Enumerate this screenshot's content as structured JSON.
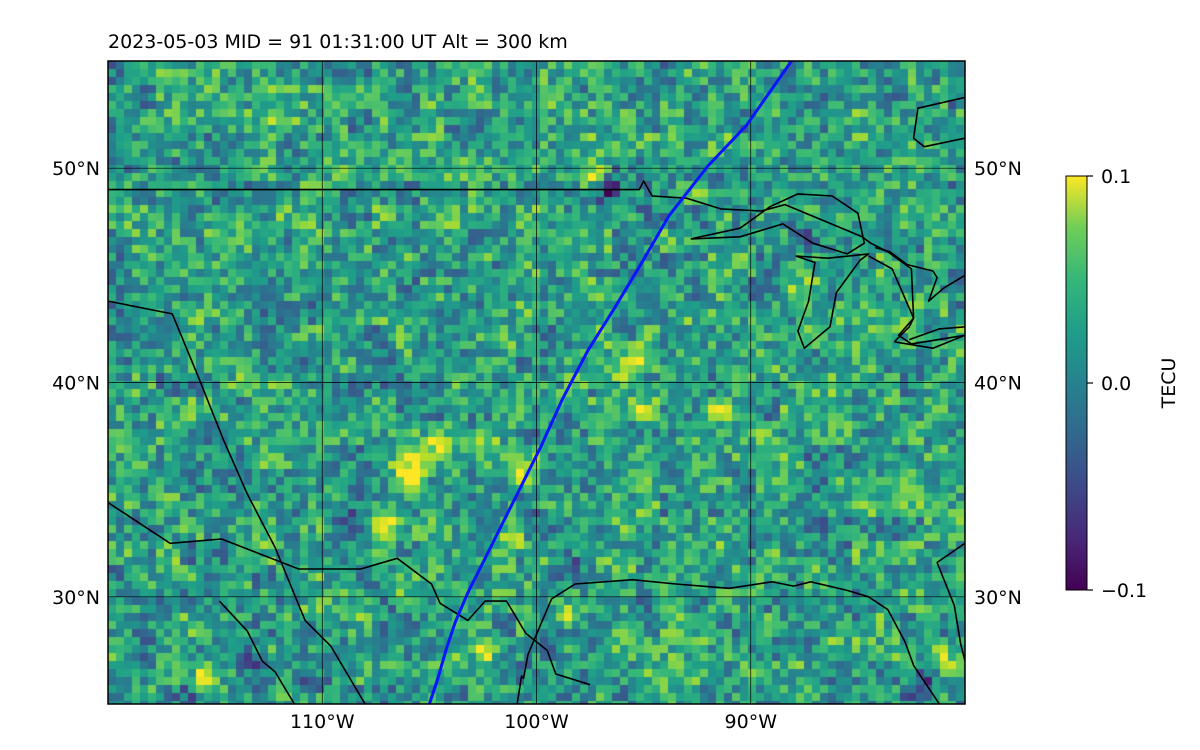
{
  "title": "2023-05-03  MID =  91    01:31:00  UT  Alt = 300 km",
  "colorbar": {
    "label": "TECU",
    "ticks": [
      {
        "value": 0.1,
        "label": "0.1"
      },
      {
        "value": 0.0,
        "label": "0.0"
      },
      {
        "value": -0.1,
        "label": "−0.1"
      }
    ],
    "vmin": -0.1,
    "vmax": 0.1,
    "colormap": "viridis"
  },
  "chart_data": {
    "type": "heatmap",
    "projection": "PlateCarree",
    "xlim": [
      -120,
      -80
    ],
    "ylim": [
      25,
      55
    ],
    "x_ticks": [
      {
        "value": -110,
        "label": "110°W"
      },
      {
        "value": -100,
        "label": "100°W"
      },
      {
        "value": -90,
        "label": "90°W"
      }
    ],
    "y_ticks": [
      {
        "value": 50,
        "label": "50°N"
      },
      {
        "value": 40,
        "label": "40°N"
      },
      {
        "value": 30,
        "label": "30°N"
      }
    ],
    "grid": true,
    "track_color": "#0a14ff",
    "track": [
      [
        -105.0,
        25.0
      ],
      [
        -104.6,
        26.2
      ],
      [
        -104.2,
        27.6
      ],
      [
        -103.8,
        28.8
      ],
      [
        -103.2,
        30.2
      ],
      [
        -102.4,
        31.8
      ],
      [
        -101.6,
        33.4
      ],
      [
        -100.8,
        35.0
      ],
      [
        -99.8,
        37.0
      ],
      [
        -98.8,
        39.2
      ],
      [
        -97.6,
        41.5
      ],
      [
        -96.4,
        43.4
      ],
      [
        -95.2,
        45.4
      ],
      [
        -93.8,
        47.8
      ],
      [
        -92.0,
        50.1
      ],
      [
        -90.2,
        52.0
      ],
      [
        -88.1,
        55.0
      ]
    ],
    "hotspots": [
      {
        "lon": -115.5,
        "lat": 26.2,
        "amp": 0.09
      },
      {
        "lon": -102.6,
        "lat": 37.2,
        "amp": 0.09
      },
      {
        "lon": -100.8,
        "lat": 35.7,
        "amp": 0.09
      },
      {
        "lon": -104.6,
        "lat": 36.9,
        "amp": 0.08
      },
      {
        "lon": -105.6,
        "lat": 36.1,
        "amp": 0.08
      },
      {
        "lon": -106.0,
        "lat": 35.6,
        "amp": 0.08
      },
      {
        "lon": -107.0,
        "lat": 33.6,
        "amp": 0.09
      },
      {
        "lon": -95.8,
        "lat": 40.7,
        "amp": 0.09
      },
      {
        "lon": -95.2,
        "lat": 41.2,
        "amp": 0.07
      },
      {
        "lon": -97.5,
        "lat": 49.6,
        "amp": 0.08
      },
      {
        "lon": -99.8,
        "lat": 53.0,
        "amp": 0.05
      },
      {
        "lon": -112.0,
        "lat": 52.2,
        "amp": 0.05
      },
      {
        "lon": -95.0,
        "lat": 38.5,
        "amp": 0.06
      },
      {
        "lon": -91.4,
        "lat": 38.8,
        "amp": 0.06
      },
      {
        "lon": -88.2,
        "lat": 44.5,
        "amp": 0.05
      },
      {
        "lon": -101.0,
        "lat": 32.5,
        "amp": 0.06
      },
      {
        "lon": -102.5,
        "lat": 27.5,
        "amp": 0.07
      },
      {
        "lon": -98.5,
        "lat": 29.3,
        "amp": 0.06
      },
      {
        "lon": -81.0,
        "lat": 27.2,
        "amp": 0.08
      },
      {
        "lon": -106.5,
        "lat": 30.5,
        "amp": 0.04
      }
    ],
    "coldspots": [
      {
        "lon": -113.5,
        "lat": 27.3,
        "amp": -0.09
      },
      {
        "lon": -116.2,
        "lat": 25.4,
        "amp": -0.07
      },
      {
        "lon": -96.5,
        "lat": 49.0,
        "amp": -0.08
      },
      {
        "lon": -99.9,
        "lat": 33.2,
        "amp": -0.07
      },
      {
        "lon": -98.5,
        "lat": 31.6,
        "amp": -0.06
      },
      {
        "lon": -108.8,
        "lat": 33.4,
        "amp": -0.06
      },
      {
        "lon": -87.8,
        "lat": 46.6,
        "amp": -0.06
      },
      {
        "lon": -82.0,
        "lat": 25.8,
        "amp": -0.09
      },
      {
        "lon": -110.5,
        "lat": 26.0,
        "amp": -0.06
      },
      {
        "lon": -86.0,
        "lat": 25.5,
        "amp": -0.05
      },
      {
        "lon": -100.5,
        "lat": 41.0,
        "amp": -0.04
      }
    ]
  },
  "map_features": {
    "coastlines": [
      [
        [
          -120,
          43.8
        ],
        [
          -117.0,
          43.2
        ],
        [
          -115.8,
          40.3
        ],
        [
          -114.6,
          37.3
        ],
        [
          -113.5,
          34.8
        ],
        [
          -112.2,
          32.3
        ],
        [
          -110.8,
          28.9
        ],
        [
          -109.6,
          27.7
        ],
        [
          -108.0,
          25.0
        ]
      ],
      [
        [
          -114.8,
          29.8
        ],
        [
          -113.5,
          28.4
        ],
        [
          -112.8,
          27.0
        ],
        [
          -112.2,
          26.5
        ],
        [
          -111.3,
          25.0
        ]
      ],
      [
        [
          -100.9,
          25.0
        ],
        [
          -100.7,
          26.3
        ],
        [
          -100.6,
          26.2
        ],
        [
          -100.4,
          27.3
        ],
        [
          -99.3,
          29.9
        ],
        [
          -98.2,
          30.6
        ],
        [
          -95.5,
          30.8
        ],
        [
          -93.5,
          30.6
        ],
        [
          -91.0,
          30.4
        ],
        [
          -89.0,
          30.7
        ],
        [
          -88.0,
          30.5
        ],
        [
          -87.2,
          30.7
        ],
        [
          -85.5,
          30.3
        ],
        [
          -84.5,
          30.0
        ],
        [
          -83.6,
          29.4
        ],
        [
          -82.8,
          27.9
        ],
        [
          -82.4,
          26.8
        ],
        [
          -81.2,
          25.0
        ]
      ],
      [
        [
          -80.0,
          27.0
        ],
        [
          -80.2,
          27.8
        ],
        [
          -80.5,
          29.6
        ],
        [
          -81.3,
          31.6
        ],
        [
          -80.0,
          32.5
        ]
      ],
      [
        [
          -79.5,
          55.0
        ],
        [
          -80.0,
          53.3
        ],
        [
          -82.2,
          52.8
        ],
        [
          -82.4,
          51.4
        ],
        [
          -81.9,
          51.0
        ],
        [
          -80.0,
          51.4
        ]
      ],
      [
        [
          -92.8,
          46.7
        ],
        [
          -90.5,
          47.2
        ],
        [
          -89.1,
          48.2
        ],
        [
          -87.8,
          48.8
        ],
        [
          -86.2,
          48.7
        ],
        [
          -85.0,
          47.9
        ],
        [
          -84.7,
          46.5
        ],
        [
          -85.5,
          46.0
        ],
        [
          -87.1,
          46.5
        ],
        [
          -88.5,
          47.4
        ],
        [
          -90.5,
          46.8
        ],
        [
          -92.8,
          46.7
        ]
      ],
      [
        [
          -87.9,
          45.9
        ],
        [
          -87.0,
          45.6
        ],
        [
          -87.3,
          43.8
        ],
        [
          -87.8,
          42.4
        ],
        [
          -87.5,
          41.6
        ],
        [
          -86.3,
          42.6
        ],
        [
          -86.0,
          44.2
        ],
        [
          -84.9,
          45.7
        ],
        [
          -84.5,
          46.0
        ],
        [
          -86.4,
          45.8
        ],
        [
          -87.9,
          45.9
        ]
      ],
      [
        [
          -84.5,
          45.9
        ],
        [
          -83.4,
          45.3
        ],
        [
          -82.4,
          43.0
        ],
        [
          -82.6,
          42.6
        ],
        [
          -83.3,
          41.9
        ]
      ],
      [
        [
          -84.2,
          46.3
        ],
        [
          -83.5,
          46.1
        ],
        [
          -82.7,
          45.5
        ],
        [
          -81.5,
          45.2
        ],
        [
          -81.3,
          44.9
        ],
        [
          -81.7,
          43.8
        ],
        [
          -81.0,
          44.4
        ],
        [
          -80.0,
          45.0
        ]
      ],
      [
        [
          -83.3,
          41.9
        ],
        [
          -81.5,
          41.6
        ],
        [
          -80.0,
          42.2
        ]
      ],
      [
        [
          -82.6,
          42.0
        ],
        [
          -81.2,
          42.5
        ],
        [
          -80.0,
          42.6
        ]
      ]
    ],
    "borders": [
      [
        [
          -120,
          49.0
        ],
        [
          -95.2,
          49.0
        ],
        [
          -95.0,
          49.4
        ],
        [
          -94.6,
          48.7
        ],
        [
          -93.0,
          48.6
        ],
        [
          -91.4,
          48.1
        ],
        [
          -89.5,
          48.0
        ],
        [
          -88.4,
          48.3
        ],
        [
          -84.8,
          46.8
        ],
        [
          -84.4,
          46.5
        ],
        [
          -83.6,
          46.1
        ],
        [
          -82.5,
          45.3
        ],
        [
          -82.4,
          43.0
        ],
        [
          -83.1,
          42.2
        ],
        [
          -82.5,
          41.8
        ],
        [
          -80.0,
          42.2
        ]
      ],
      [
        [
          -120,
          34.4
        ],
        [
          -117.1,
          32.5
        ],
        [
          -114.7,
          32.7
        ],
        [
          -111.1,
          31.3
        ],
        [
          -108.2,
          31.3
        ],
        [
          -106.5,
          31.8
        ],
        [
          -104.9,
          30.6
        ],
        [
          -104.5,
          29.7
        ],
        [
          -103.2,
          28.9
        ],
        [
          -102.4,
          29.8
        ],
        [
          -101.4,
          29.8
        ],
        [
          -100.5,
          28.3
        ],
        [
          -99.5,
          27.5
        ],
        [
          -99.1,
          26.4
        ],
        [
          -97.5,
          25.9
        ]
      ]
    ]
  }
}
